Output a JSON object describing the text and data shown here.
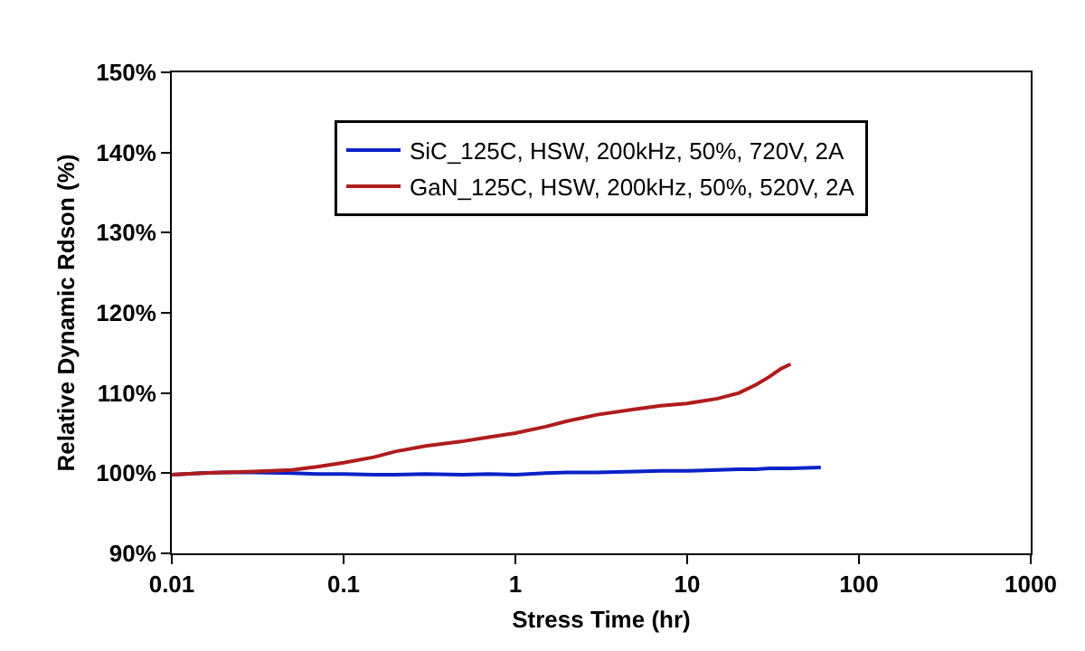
{
  "chart_data": {
    "type": "line",
    "xlabel": "Stress Time (hr)",
    "ylabel": "Relative Dynamic Rdson (%)",
    "log": "x",
    "grid": false,
    "legend": "top",
    "marker": "none",
    "line_style": "solid",
    "xlim": [
      0.01,
      1000
    ],
    "xticks": [
      0.01,
      0.1,
      1,
      10,
      100,
      1000
    ],
    "ylim": [
      90,
      150
    ],
    "yticks": [
      {
        "value": 90,
        "label": "90%"
      },
      {
        "value": 100,
        "label": "100%"
      },
      {
        "value": 110,
        "label": "110%"
      },
      {
        "value": 120,
        "label": "120%"
      },
      {
        "value": 130,
        "label": "130%"
      },
      {
        "value": 140,
        "label": "140%"
      },
      {
        "value": 150,
        "label": "150%"
      }
    ],
    "series": [
      {
        "name": "SiC_125C, HSW, 200kHz, 50%, 720V, 2A",
        "color": "#0a22c8",
        "x": [
          0.01,
          0.015,
          0.02,
          0.03,
          0.05,
          0.07,
          0.1,
          0.15,
          0.2,
          0.3,
          0.5,
          0.7,
          1,
          1.5,
          2,
          3,
          5,
          7,
          10,
          15,
          20,
          25,
          30,
          40,
          60
        ],
        "values": [
          99.8,
          100,
          100.1,
          100.1,
          100,
          99.9,
          99.9,
          99.8,
          99.8,
          99.9,
          99.8,
          99.9,
          99.8,
          100,
          100.1,
          100.1,
          100.2,
          100.3,
          100.3,
          100.4,
          100.5,
          100.5,
          100.6,
          100.6,
          100.7
        ]
      },
      {
        "name": "GaN_125C, HSW, 200kHz, 50%, 520V, 2A",
        "color": "#b01c1c",
        "x": [
          0.01,
          0.015,
          0.02,
          0.03,
          0.05,
          0.07,
          0.1,
          0.15,
          0.2,
          0.3,
          0.5,
          0.7,
          1,
          1.5,
          2,
          3,
          5,
          7,
          10,
          15,
          20,
          25,
          30,
          35,
          40
        ],
        "values": [
          99.8,
          100,
          100.1,
          100.2,
          100.4,
          100.8,
          101.3,
          102,
          102.7,
          103.4,
          104,
          104.5,
          105,
          105.8,
          106.5,
          107.3,
          108,
          108.4,
          108.7,
          109.3,
          110,
          111,
          112,
          113,
          113.6
        ]
      }
    ]
  }
}
